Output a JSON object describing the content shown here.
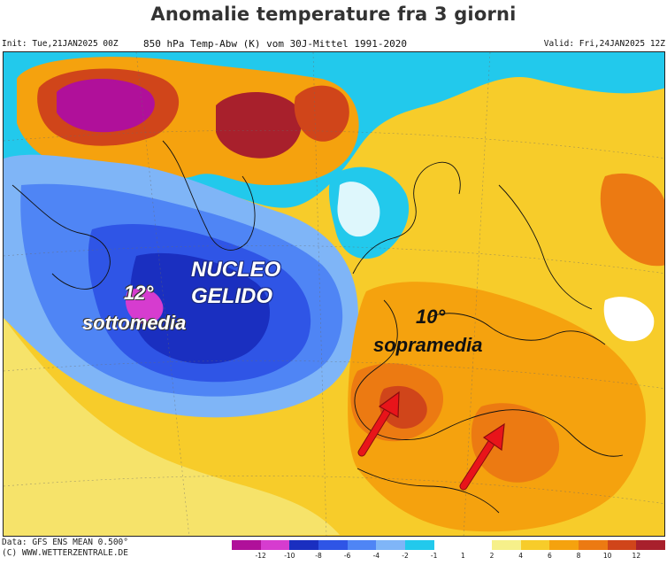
{
  "title": "Anomalie temperature fra 3 giorni",
  "header": {
    "init": "Init: Tue,21JAN2025 00Z",
    "parameter": "850 hPa Temp-Abw (K) vom 30J-Mittel 1991-2020",
    "valid": "Valid: Fri,24JAN2025 12Z"
  },
  "annotations": {
    "cold_core_line1": "NUCLEO",
    "cold_core_line2": "GELIDO",
    "below_degrees": "12°",
    "below_label": "sottomedia",
    "above_degrees": "10°",
    "above_label": "sopramedia"
  },
  "footer": {
    "data_line": "Data: GFS ENS MEAN 0.500°",
    "source_line": "(C) WWW.WETTERZENTRALE.DE"
  },
  "legend": {
    "ticks": [
      "-12",
      "-10",
      "-8",
      "-6",
      "-4",
      "-2",
      "-1",
      "1",
      "2",
      "4",
      "6",
      "8",
      "10",
      "12"
    ],
    "colors": [
      "#b0109a",
      "#d63ccf",
      "#1a2fc0",
      "#2f55e6",
      "#4f85f5",
      "#7fb5f7",
      "#22c9ec",
      "#ffffff",
      "#ffffff",
      "#f6f08a",
      "#f7cc2a",
      "#f5a20e",
      "#ec7a12",
      "#d0451a",
      "#a8202c"
    ]
  },
  "colors": {
    "cold_deep": "#1a2fc0",
    "cold_mid": "#4f85f5",
    "cold_light": "#22c9ec",
    "warm_light": "#f7cc2a",
    "warm_mid": "#f5a20e",
    "warm_deep": "#d0451a",
    "warm_extreme": "#a8202c",
    "arrow": "#e8141a"
  }
}
